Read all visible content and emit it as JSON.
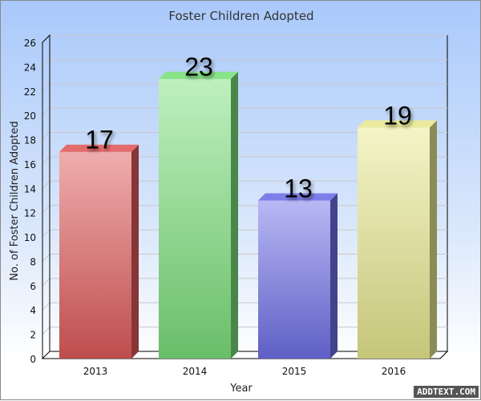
{
  "chart_data": {
    "type": "bar",
    "title": "Foster Children Adopted",
    "xlabel": "Year",
    "ylabel": "No. of Foster Children Adopted",
    "categories": [
      "2013",
      "2014",
      "2015",
      "2016"
    ],
    "values": [
      17,
      23,
      13,
      19
    ],
    "data_labels": [
      "17",
      "23",
      "13",
      "19"
    ],
    "ylim": [
      0,
      26
    ],
    "yticks": [
      0,
      2,
      4,
      6,
      8,
      10,
      12,
      14,
      16,
      18,
      20,
      22,
      24,
      26
    ],
    "grid": true,
    "legend": "none",
    "style": "3d",
    "colors": [
      "#e05a5a",
      "#7ce07c",
      "#7070e8",
      "#e8e890"
    ]
  },
  "watermark": "ADDTEXT.COM"
}
